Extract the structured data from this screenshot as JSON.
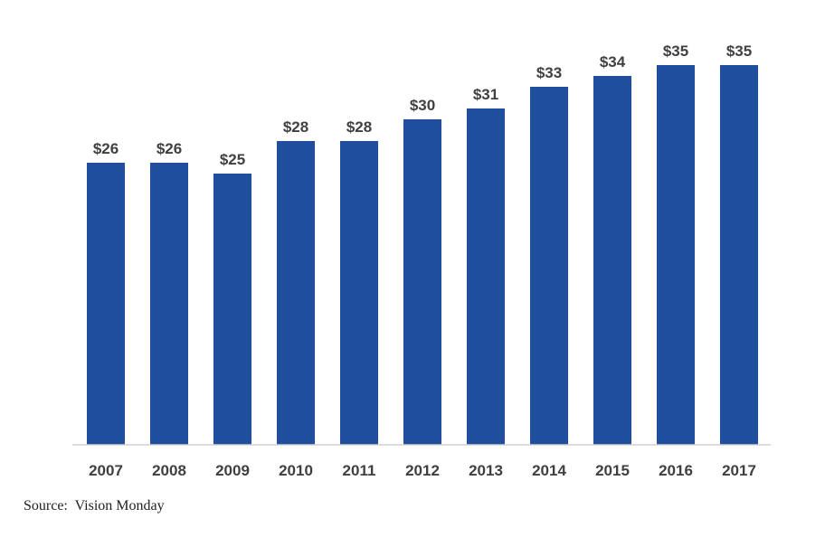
{
  "chart_data": {
    "type": "bar",
    "categories": [
      "2007",
      "2008",
      "2009",
      "2010",
      "2011",
      "2012",
      "2013",
      "2014",
      "2015",
      "2016",
      "2017"
    ],
    "values": [
      26,
      26,
      25,
      28,
      28,
      30,
      31,
      33,
      34,
      35,
      35
    ],
    "data_labels": [
      "$26",
      "$26",
      "$25",
      "$28",
      "$28",
      "$30",
      "$31",
      "$33",
      "$34",
      "$35",
      "$35"
    ],
    "title": "",
    "xlabel": "",
    "ylabel": "",
    "ylim": [
      0,
      35
    ],
    "grid": false,
    "legend": "none",
    "bar_color": "#1f4e9c"
  },
  "source": "Source:  Vision Monday"
}
